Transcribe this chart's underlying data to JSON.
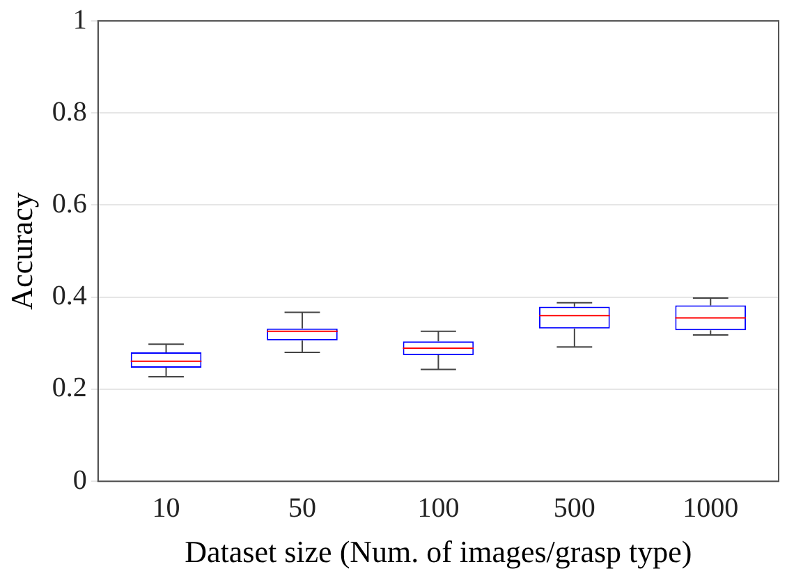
{
  "chart_data": {
    "type": "box",
    "xlabel": "Dataset size (Num. of images/grasp type)",
    "ylabel": "Accuracy",
    "categories": [
      "10",
      "50",
      "100",
      "500",
      "1000"
    ],
    "boxes": [
      {
        "low": 0.227,
        "q1": 0.247,
        "median": 0.261,
        "q3": 0.28,
        "high": 0.298
      },
      {
        "low": 0.28,
        "q1": 0.306,
        "median": 0.326,
        "q3": 0.332,
        "high": 0.367
      },
      {
        "low": 0.243,
        "q1": 0.274,
        "median": 0.289,
        "q3": 0.304,
        "high": 0.326
      },
      {
        "low": 0.292,
        "q1": 0.332,
        "median": 0.36,
        "q3": 0.379,
        "high": 0.388
      },
      {
        "low": 0.318,
        "q1": 0.328,
        "median": 0.355,
        "q3": 0.382,
        "high": 0.398
      }
    ],
    "color": "#0000ff",
    "ylim": [
      0,
      1
    ],
    "yticks": [
      0,
      0.2,
      0.4,
      0.6,
      0.8,
      1
    ],
    "grid": "y"
  }
}
